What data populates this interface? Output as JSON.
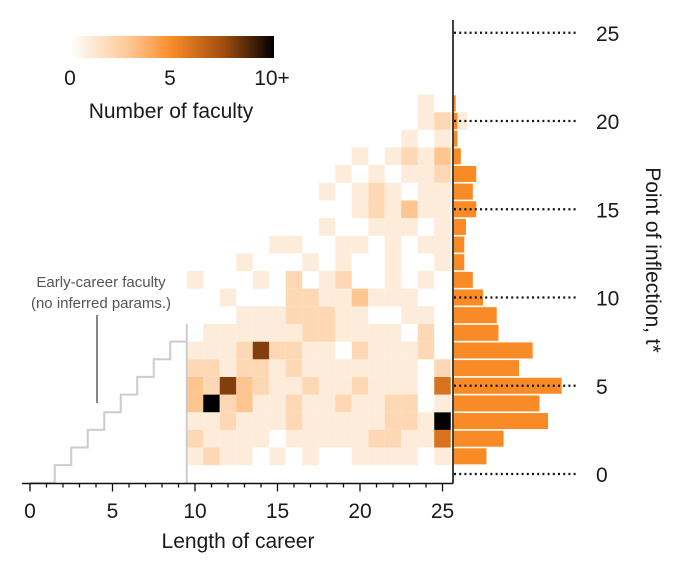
{
  "chart_data": {
    "type": "heatmap",
    "xlabel": "Length of career",
    "ylabel": "Point of inflection, t*",
    "xlim": [
      0,
      25
    ],
    "ylim": [
      0,
      25
    ],
    "x_ticks": [
      "0",
      "5",
      "10",
      "15",
      "20",
      "25"
    ],
    "y_ticks": [
      "0",
      "5",
      "10",
      "15",
      "20",
      "25"
    ],
    "colorbar": {
      "title": "Number of faculty",
      "tick_labels": [
        "0",
        "5",
        "10+"
      ],
      "max": 10,
      "colors": [
        "#ffffff",
        "#fdc58f",
        "#f98b27",
        "#a34e10",
        "#000000"
      ]
    },
    "annotation": "Early-career faculty\n(no inferred params.)",
    "annotation_lines": [
      "Early-career faculty",
      "(no inferred params.)"
    ],
    "early_career_region": {
      "max_career": 9
    },
    "cells": [
      [
        10,
        1,
        1
      ],
      [
        11,
        1,
        2
      ],
      [
        12,
        1,
        1
      ],
      [
        13,
        1,
        1
      ],
      [
        15,
        1,
        1
      ],
      [
        17,
        1,
        1
      ],
      [
        20,
        1,
        1
      ],
      [
        21,
        1,
        1
      ],
      [
        22,
        1,
        1
      ],
      [
        23,
        1,
        1
      ],
      [
        25,
        1,
        1
      ],
      [
        10,
        2,
        2
      ],
      [
        11,
        2,
        1
      ],
      [
        12,
        2,
        1
      ],
      [
        13,
        2,
        1
      ],
      [
        14,
        2,
        1
      ],
      [
        16,
        2,
        1
      ],
      [
        17,
        2,
        1
      ],
      [
        18,
        2,
        1
      ],
      [
        19,
        2,
        1
      ],
      [
        20,
        2,
        1
      ],
      [
        21,
        2,
        2
      ],
      [
        22,
        2,
        2
      ],
      [
        23,
        2,
        1
      ],
      [
        24,
        2,
        1
      ],
      [
        25,
        2,
        6
      ],
      [
        10,
        3,
        1
      ],
      [
        11,
        3,
        1
      ],
      [
        12,
        3,
        2
      ],
      [
        13,
        3,
        1
      ],
      [
        14,
        3,
        1
      ],
      [
        15,
        3,
        1
      ],
      [
        16,
        3,
        2
      ],
      [
        17,
        3,
        1
      ],
      [
        18,
        3,
        1
      ],
      [
        19,
        3,
        1
      ],
      [
        20,
        3,
        1
      ],
      [
        21,
        3,
        1
      ],
      [
        22,
        3,
        2
      ],
      [
        23,
        3,
        2
      ],
      [
        24,
        3,
        1
      ],
      [
        25,
        3,
        10
      ],
      [
        10,
        4,
        3
      ],
      [
        11,
        4,
        10
      ],
      [
        12,
        4,
        2
      ],
      [
        13,
        4,
        3
      ],
      [
        14,
        4,
        1
      ],
      [
        15,
        4,
        1
      ],
      [
        16,
        4,
        2
      ],
      [
        17,
        4,
        1
      ],
      [
        18,
        4,
        1
      ],
      [
        19,
        4,
        2
      ],
      [
        20,
        4,
        1
      ],
      [
        21,
        4,
        1
      ],
      [
        22,
        4,
        2
      ],
      [
        23,
        4,
        2
      ],
      [
        25,
        4,
        1
      ],
      [
        10,
        5,
        3
      ],
      [
        11,
        5,
        2
      ],
      [
        12,
        5,
        8
      ],
      [
        13,
        5,
        3
      ],
      [
        14,
        5,
        2
      ],
      [
        15,
        5,
        1
      ],
      [
        16,
        5,
        1
      ],
      [
        17,
        5,
        2
      ],
      [
        18,
        5,
        1
      ],
      [
        19,
        5,
        1
      ],
      [
        20,
        5,
        2
      ],
      [
        21,
        5,
        1
      ],
      [
        22,
        5,
        1
      ],
      [
        23,
        5,
        1
      ],
      [
        25,
        5,
        6
      ],
      [
        10,
        6,
        2
      ],
      [
        11,
        6,
        2
      ],
      [
        12,
        6,
        1
      ],
      [
        13,
        6,
        2
      ],
      [
        14,
        6,
        2
      ],
      [
        15,
        6,
        1
      ],
      [
        16,
        6,
        2
      ],
      [
        17,
        6,
        1
      ],
      [
        18,
        6,
        1
      ],
      [
        19,
        6,
        1
      ],
      [
        20,
        6,
        1
      ],
      [
        21,
        6,
        1
      ],
      [
        22,
        6,
        1
      ],
      [
        23,
        6,
        1
      ],
      [
        25,
        6,
        2
      ],
      [
        10,
        7,
        1
      ],
      [
        11,
        7,
        1
      ],
      [
        12,
        7,
        1
      ],
      [
        13,
        7,
        2
      ],
      [
        14,
        7,
        8
      ],
      [
        15,
        7,
        2
      ],
      [
        16,
        7,
        2
      ],
      [
        17,
        7,
        1
      ],
      [
        18,
        7,
        1
      ],
      [
        20,
        7,
        2
      ],
      [
        21,
        7,
        1
      ],
      [
        22,
        7,
        1
      ],
      [
        23,
        7,
        1
      ],
      [
        24,
        7,
        2
      ],
      [
        11,
        8,
        1
      ],
      [
        12,
        8,
        1
      ],
      [
        13,
        8,
        1
      ],
      [
        14,
        8,
        1
      ],
      [
        15,
        8,
        1
      ],
      [
        16,
        8,
        1
      ],
      [
        17,
        8,
        2
      ],
      [
        18,
        8,
        2
      ],
      [
        19,
        8,
        1
      ],
      [
        20,
        8,
        1
      ],
      [
        21,
        8,
        1
      ],
      [
        22,
        8,
        1
      ],
      [
        24,
        8,
        2
      ],
      [
        13,
        9,
        1
      ],
      [
        14,
        9,
        1
      ],
      [
        15,
        9,
        1
      ],
      [
        16,
        9,
        2
      ],
      [
        17,
        9,
        2
      ],
      [
        18,
        9,
        2
      ],
      [
        19,
        9,
        1
      ],
      [
        20,
        9,
        1
      ],
      [
        23,
        9,
        1
      ],
      [
        24,
        9,
        1
      ],
      [
        12,
        10,
        1
      ],
      [
        16,
        10,
        2
      ],
      [
        17,
        10,
        2
      ],
      [
        18,
        10,
        1
      ],
      [
        19,
        10,
        1
      ],
      [
        20,
        10,
        3
      ],
      [
        21,
        10,
        1
      ],
      [
        22,
        10,
        1
      ],
      [
        23,
        10,
        1
      ],
      [
        10,
        11,
        1
      ],
      [
        14,
        11,
        1
      ],
      [
        16,
        11,
        2
      ],
      [
        18,
        11,
        1
      ],
      [
        19,
        11,
        2
      ],
      [
        22,
        11,
        1
      ],
      [
        24,
        11,
        1
      ],
      [
        13,
        12,
        1
      ],
      [
        17,
        12,
        1
      ],
      [
        19,
        12,
        1
      ],
      [
        22,
        12,
        1
      ],
      [
        25,
        12,
        1
      ],
      [
        15,
        13,
        1
      ],
      [
        16,
        13,
        1
      ],
      [
        19,
        13,
        1
      ],
      [
        20,
        13,
        1
      ],
      [
        22,
        13,
        1
      ],
      [
        24,
        13,
        1
      ],
      [
        25,
        13,
        1
      ],
      [
        18,
        14,
        1
      ],
      [
        21,
        14,
        1
      ],
      [
        22,
        14,
        1
      ],
      [
        23,
        14,
        1
      ],
      [
        25,
        14,
        1
      ],
      [
        20,
        15,
        1
      ],
      [
        21,
        15,
        2
      ],
      [
        22,
        15,
        1
      ],
      [
        23,
        15,
        3
      ],
      [
        24,
        15,
        1
      ],
      [
        25,
        15,
        1
      ],
      [
        18,
        16,
        1
      ],
      [
        20,
        16,
        1
      ],
      [
        21,
        16,
        2
      ],
      [
        22,
        16,
        1
      ],
      [
        24,
        16,
        1
      ],
      [
        25,
        16,
        1
      ],
      [
        19,
        17,
        1
      ],
      [
        21,
        17,
        1
      ],
      [
        23,
        17,
        1
      ],
      [
        24,
        17,
        1
      ],
      [
        25,
        17,
        2
      ],
      [
        20,
        18,
        1
      ],
      [
        22,
        18,
        1
      ],
      [
        23,
        18,
        2
      ],
      [
        24,
        18,
        1
      ],
      [
        25,
        18,
        3
      ],
      [
        23,
        19,
        1
      ],
      [
        25,
        19,
        1
      ],
      [
        24,
        20,
        1
      ],
      [
        25,
        20,
        2
      ],
      [
        26,
        20,
        1
      ],
      [
        24,
        21,
        1
      ]
    ],
    "marginal": {
      "t_values": [
        1,
        2,
        3,
        4,
        5,
        6,
        7,
        8,
        9,
        10,
        11,
        12,
        13,
        14,
        15,
        16,
        17,
        18,
        19,
        20,
        21
      ],
      "counts": [
        19,
        29,
        55,
        50,
        63,
        38,
        46,
        26,
        25,
        17,
        11,
        6,
        6,
        7,
        13,
        11,
        13,
        4,
        2,
        2,
        1
      ]
    }
  }
}
